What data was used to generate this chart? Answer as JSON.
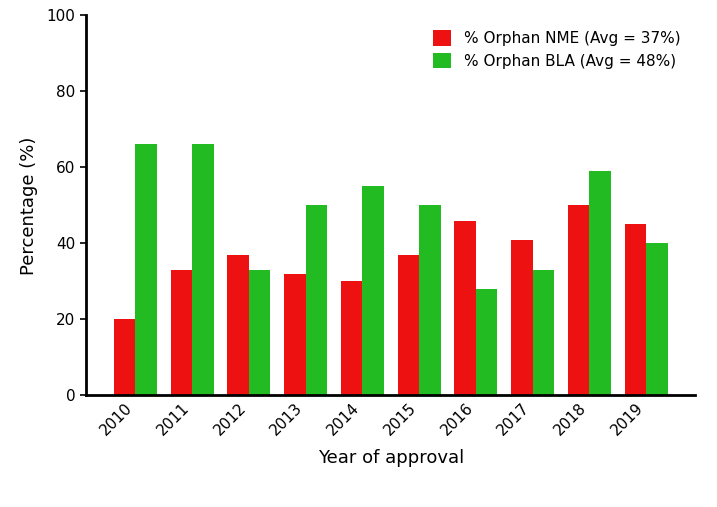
{
  "years": [
    "2010",
    "2011",
    "2012",
    "2013",
    "2014",
    "2015",
    "2016",
    "2017",
    "2018",
    "2019"
  ],
  "nme_values": [
    20,
    33,
    37,
    32,
    30,
    37,
    46,
    41,
    50,
    45
  ],
  "bla_values": [
    66,
    66,
    33,
    50,
    55,
    50,
    28,
    33,
    59,
    40
  ],
  "nme_color": "#ee1111",
  "bla_color": "#22bb22",
  "nme_label": "% Orphan NME (Avg = 37%)",
  "bla_label": "% Orphan BLA (Avg = 48%)",
  "xlabel": "Year of approval",
  "ylabel": "Percentage (%)",
  "ylim": [
    0,
    100
  ],
  "yticks": [
    0,
    20,
    40,
    60,
    80,
    100
  ],
  "bar_width": 0.38,
  "legend_fontsize": 11,
  "axis_fontsize": 13,
  "tick_fontsize": 11,
  "background_color": "#ffffff"
}
